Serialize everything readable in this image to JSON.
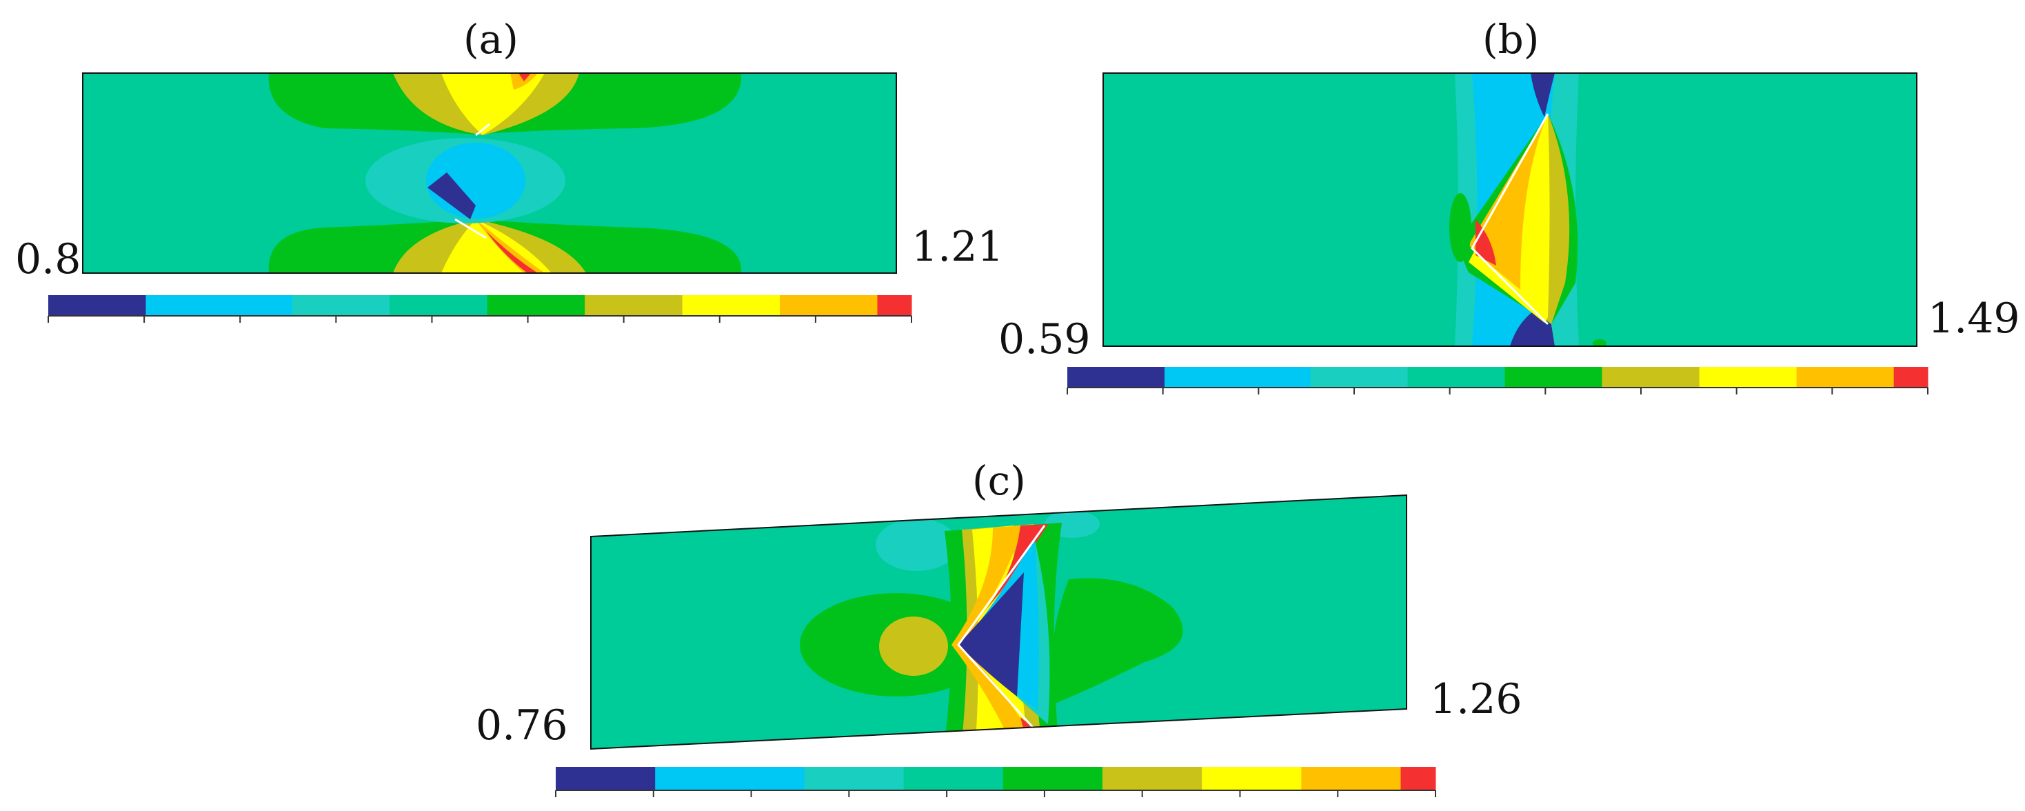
{
  "palette": {
    "dark_blue": "#2E3192",
    "light_blue": "#00C8F5",
    "cyan_teal": "#18CFC0",
    "teal": "#00CC99",
    "green": "#00C21A",
    "olive": "#C9C319",
    "yellow": "#FFFF00",
    "orange": "#FFC000",
    "red": "#F53030"
  },
  "colorbar_order": [
    "dark_blue",
    "light_blue",
    "cyan_teal",
    "teal",
    "green",
    "olive",
    "yellow",
    "orange",
    "red"
  ],
  "panels": {
    "a": {
      "label": "(a)",
      "min_label": "0.8",
      "max_label": "1.21",
      "min": 0.8,
      "max": 1.21
    },
    "b": {
      "label": "(b)",
      "min_label": "0.59",
      "max_label": "1.49",
      "min": 0.59,
      "max": 1.49
    },
    "c": {
      "label": "(c)",
      "min_label": "0.76",
      "max_label": "1.26",
      "min": 0.76,
      "max": 1.26
    }
  }
}
